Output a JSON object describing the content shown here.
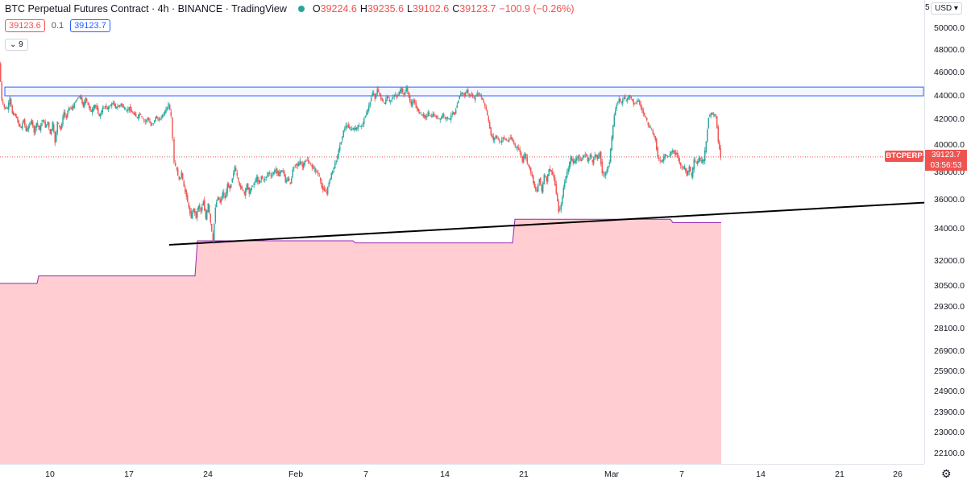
{
  "header": {
    "title": "BTC Perpetual Futures Contract · 4h · BINANCE · TradingView",
    "ohlc": {
      "o_key": "O",
      "o": "39224.6",
      "h_key": "H",
      "h": "39235.6",
      "l_key": "L",
      "l": "39102.6",
      "c_key": "C",
      "c": "39123.7",
      "change": "−100.9 (−0.26%)"
    },
    "bid": "39123.6",
    "spread": "0.1",
    "ask": "39123.7",
    "collapse_label": "9",
    "currency": "USD",
    "axis_edge": "5"
  },
  "price_axis": {
    "ticks": [
      "50000.0",
      "48000.0",
      "46000.0",
      "44000.0",
      "42000.0",
      "40000.0",
      "38000.0",
      "36000.0",
      "34000.0",
      "32000.0",
      "30500.0",
      "29300.0",
      "28100.0",
      "26900.0",
      "25900.0",
      "24900.0",
      "23900.0",
      "23000.0",
      "22100.0"
    ]
  },
  "time_axis": {
    "ticks": [
      "10",
      "17",
      "24",
      "Feb",
      "7",
      "14",
      "21",
      "Mar",
      "7",
      "14",
      "21",
      "26"
    ]
  },
  "last_price": {
    "symbol": "BTCPERP",
    "price": "39123.7",
    "countdown": "03:56:53"
  },
  "colors": {
    "up": "#26a69a",
    "down": "#ef5350",
    "zone": "#2962ff",
    "fill": "#ffcdd2",
    "fill_line": "#9c27b0",
    "trend": "#000000"
  },
  "chart_data": {
    "type": "candlestick",
    "path_points": [
      [
        0,
        46800
      ],
      [
        3,
        43600
      ],
      [
        6,
        43000
      ],
      [
        10,
        42900
      ],
      [
        13,
        43800
      ],
      [
        16,
        42500
      ],
      [
        20,
        42300
      ],
      [
        24,
        41600
      ],
      [
        27,
        41300
      ],
      [
        30,
        42000
      ],
      [
        33,
        41100
      ],
      [
        36,
        41400
      ],
      [
        40,
        41900
      ],
      [
        43,
        41000
      ],
      [
        46,
        41700
      ],
      [
        50,
        41200
      ],
      [
        54,
        42000
      ],
      [
        57,
        41400
      ],
      [
        60,
        41800
      ],
      [
        63,
        40800
      ],
      [
        66,
        41700
      ],
      [
        69,
        40200
      ],
      [
        72,
        41800
      ],
      [
        76,
        41200
      ],
      [
        80,
        42600
      ],
      [
        83,
        42100
      ],
      [
        86,
        43000
      ],
      [
        90,
        42900
      ],
      [
        93,
        43300
      ],
      [
        96,
        43700
      ],
      [
        100,
        44000
      ],
      [
        104,
        43100
      ],
      [
        107,
        43800
      ],
      [
        110,
        43200
      ],
      [
        114,
        42600
      ],
      [
        118,
        43200
      ],
      [
        121,
        42900
      ],
      [
        124,
        42200
      ],
      [
        128,
        42900
      ],
      [
        131,
        43100
      ],
      [
        134,
        42900
      ],
      [
        138,
        43200
      ],
      [
        141,
        43400
      ],
      [
        144,
        43000
      ],
      [
        148,
        43100
      ],
      [
        151,
        43300
      ],
      [
        154,
        43000
      ],
      [
        158,
        42700
      ],
      [
        161,
        43000
      ],
      [
        164,
        42600
      ],
      [
        168,
        42400
      ],
      [
        171,
        42100
      ],
      [
        174,
        42500
      ],
      [
        178,
        42000
      ],
      [
        181,
        41800
      ],
      [
        184,
        42100
      ],
      [
        188,
        41500
      ],
      [
        191,
        41700
      ],
      [
        194,
        42200
      ],
      [
        198,
        41900
      ],
      [
        201,
        42200
      ],
      [
        204,
        42500
      ],
      [
        208,
        43000
      ],
      [
        210,
        43300
      ],
      [
        213,
        42200
      ],
      [
        215,
        40500
      ],
      [
        217,
        38700
      ],
      [
        220,
        38200
      ],
      [
        223,
        37400
      ],
      [
        226,
        38000
      ],
      [
        229,
        36900
      ],
      [
        232,
        36300
      ],
      [
        235,
        35400
      ],
      [
        238,
        34800
      ],
      [
        241,
        35400
      ],
      [
        244,
        34800
      ],
      [
        247,
        35600
      ],
      [
        250,
        35200
      ],
      [
        253,
        35900
      ],
      [
        256,
        34700
      ],
      [
        259,
        35700
      ],
      [
        262,
        34400
      ],
      [
        265,
        33200
      ],
      [
        268,
        35500
      ],
      [
        271,
        36200
      ],
      [
        274,
        35800
      ],
      [
        277,
        36500
      ],
      [
        280,
        36100
      ],
      [
        283,
        37100
      ],
      [
        286,
        36800
      ],
      [
        289,
        37600
      ],
      [
        292,
        38400
      ],
      [
        295,
        37700
      ],
      [
        298,
        37000
      ],
      [
        301,
        36800
      ],
      [
        304,
        36400
      ],
      [
        307,
        37100
      ],
      [
        310,
        36500
      ],
      [
        313,
        36900
      ],
      [
        316,
        37200
      ],
      [
        319,
        37600
      ],
      [
        322,
        37200
      ],
      [
        325,
        37700
      ],
      [
        328,
        37400
      ],
      [
        331,
        37700
      ],
      [
        334,
        38000
      ],
      [
        337,
        37700
      ],
      [
        340,
        38000
      ],
      [
        343,
        38200
      ],
      [
        346,
        37800
      ],
      [
        349,
        38100
      ],
      [
        352,
        38100
      ],
      [
        355,
        37300
      ],
      [
        358,
        37600
      ],
      [
        361,
        37100
      ],
      [
        364,
        38200
      ],
      [
        367,
        38600
      ],
      [
        370,
        38500
      ],
      [
        373,
        38800
      ],
      [
        376,
        38400
      ],
      [
        379,
        38800
      ],
      [
        382,
        38900
      ],
      [
        385,
        38600
      ],
      [
        388,
        38400
      ],
      [
        391,
        38200
      ],
      [
        394,
        38000
      ],
      [
        397,
        37700
      ],
      [
        400,
        36900
      ],
      [
        403,
        36700
      ],
      [
        406,
        36500
      ],
      [
        409,
        37300
      ],
      [
        412,
        37900
      ],
      [
        415,
        38400
      ],
      [
        418,
        38900
      ],
      [
        421,
        39600
      ],
      [
        424,
        40300
      ],
      [
        427,
        41100
      ],
      [
        430,
        41500
      ],
      [
        433,
        41400
      ],
      [
        436,
        41200
      ],
      [
        439,
        41300
      ],
      [
        442,
        41200
      ],
      [
        445,
        41500
      ],
      [
        448,
        41400
      ],
      [
        451,
        41700
      ],
      [
        454,
        42300
      ],
      [
        457,
        42800
      ],
      [
        460,
        43500
      ],
      [
        463,
        44300
      ],
      [
        466,
        43800
      ],
      [
        469,
        44600
      ],
      [
        472,
        44000
      ],
      [
        475,
        43600
      ],
      [
        478,
        43300
      ],
      [
        481,
        44000
      ],
      [
        484,
        43500
      ],
      [
        487,
        43700
      ],
      [
        490,
        44100
      ],
      [
        493,
        43900
      ],
      [
        496,
        44300
      ],
      [
        499,
        44600
      ],
      [
        502,
        44000
      ],
      [
        505,
        44800
      ],
      [
        508,
        43900
      ],
      [
        511,
        43200
      ],
      [
        514,
        43700
      ],
      [
        517,
        43000
      ],
      [
        520,
        42700
      ],
      [
        523,
        42400
      ],
      [
        526,
        42300
      ],
      [
        529,
        42100
      ],
      [
        532,
        42600
      ],
      [
        535,
        42200
      ],
      [
        538,
        42400
      ],
      [
        541,
        42200
      ],
      [
        544,
        42100
      ],
      [
        547,
        42000
      ],
      [
        550,
        42400
      ],
      [
        553,
        42100
      ],
      [
        556,
        42100
      ],
      [
        559,
        42000
      ],
      [
        562,
        42600
      ],
      [
        565,
        42400
      ],
      [
        568,
        43300
      ],
      [
        571,
        44000
      ],
      [
        574,
        44300
      ],
      [
        577,
        44000
      ],
      [
        580,
        44500
      ],
      [
        583,
        44000
      ],
      [
        586,
        44100
      ],
      [
        589,
        43700
      ],
      [
        592,
        44100
      ],
      [
        595,
        44200
      ],
      [
        598,
        43900
      ],
      [
        601,
        43400
      ],
      [
        604,
        42800
      ],
      [
        607,
        41800
      ],
      [
        610,
        40800
      ],
      [
        613,
        40400
      ],
      [
        616,
        40700
      ],
      [
        619,
        40400
      ],
      [
        622,
        40200
      ],
      [
        625,
        40600
      ],
      [
        628,
        40400
      ],
      [
        631,
        40300
      ],
      [
        634,
        40600
      ],
      [
        637,
        40300
      ],
      [
        640,
        39900
      ],
      [
        643,
        39800
      ],
      [
        646,
        39500
      ],
      [
        649,
        38800
      ],
      [
        652,
        39400
      ],
      [
        655,
        38700
      ],
      [
        658,
        38300
      ],
      [
        661,
        37700
      ],
      [
        664,
        36900
      ],
      [
        667,
        36600
      ],
      [
        670,
        37600
      ],
      [
        673,
        36600
      ],
      [
        676,
        37800
      ],
      [
        679,
        37400
      ],
      [
        682,
        38200
      ],
      [
        685,
        38100
      ],
      [
        688,
        37600
      ],
      [
        691,
        36500
      ],
      [
        694,
        35200
      ],
      [
        697,
        35600
      ],
      [
        700,
        36900
      ],
      [
        703,
        37700
      ],
      [
        706,
        38300
      ],
      [
        709,
        39100
      ],
      [
        712,
        38700
      ],
      [
        715,
        38900
      ],
      [
        718,
        39200
      ],
      [
        721,
        38800
      ],
      [
        724,
        39100
      ],
      [
        727,
        39400
      ],
      [
        730,
        38800
      ],
      [
        733,
        39300
      ],
      [
        736,
        38700
      ],
      [
        739,
        39300
      ],
      [
        742,
        39000
      ],
      [
        745,
        39400
      ],
      [
        748,
        38000
      ],
      [
        751,
        37800
      ],
      [
        754,
        38200
      ],
      [
        757,
        38800
      ],
      [
        760,
        40600
      ],
      [
        763,
        42300
      ],
      [
        766,
        43300
      ],
      [
        769,
        43700
      ],
      [
        772,
        43400
      ],
      [
        775,
        43900
      ],
      [
        778,
        43600
      ],
      [
        781,
        44000
      ],
      [
        784,
        43800
      ],
      [
        787,
        43300
      ],
      [
        790,
        43500
      ],
      [
        793,
        43600
      ],
      [
        796,
        43000
      ],
      [
        799,
        42500
      ],
      [
        802,
        42200
      ],
      [
        805,
        41500
      ],
      [
        808,
        41300
      ],
      [
        811,
        40900
      ],
      [
        814,
        40400
      ],
      [
        817,
        39100
      ],
      [
        820,
        38800
      ],
      [
        823,
        38900
      ],
      [
        826,
        39300
      ],
      [
        829,
        39100
      ],
      [
        832,
        39300
      ],
      [
        835,
        39600
      ],
      [
        838,
        39400
      ],
      [
        841,
        39300
      ],
      [
        844,
        38700
      ],
      [
        847,
        38300
      ],
      [
        850,
        38400
      ],
      [
        853,
        37800
      ],
      [
        856,
        38400
      ],
      [
        859,
        37700
      ],
      [
        862,
        38900
      ],
      [
        865,
        38600
      ],
      [
        868,
        39000
      ],
      [
        871,
        38800
      ],
      [
        874,
        38900
      ],
      [
        877,
        40200
      ],
      [
        880,
        42200
      ],
      [
        883,
        42500
      ],
      [
        886,
        42400
      ],
      [
        889,
        42300
      ],
      [
        892,
        40300
      ],
      [
        895,
        39100
      ]
    ],
    "resistance_zone": {
      "y_top": 44750,
      "y_bottom": 44000,
      "x_start": 6,
      "x_end": 1147
    },
    "trendline": {
      "x1": 210,
      "y1": 33000,
      "x2": 1147,
      "y2": 35800
    },
    "support_fill_steps": [
      [
        0,
        30650
      ],
      [
        46,
        30650
      ],
      [
        48,
        31100
      ],
      [
        242,
        31100
      ],
      [
        245,
        33250
      ],
      [
        438,
        33250
      ],
      [
        441,
        33120
      ],
      [
        636,
        33120
      ],
      [
        639,
        34650
      ],
      [
        832,
        34650
      ],
      [
        835,
        34420
      ],
      [
        895,
        34420
      ]
    ],
    "last_price_value": 39123.7
  }
}
